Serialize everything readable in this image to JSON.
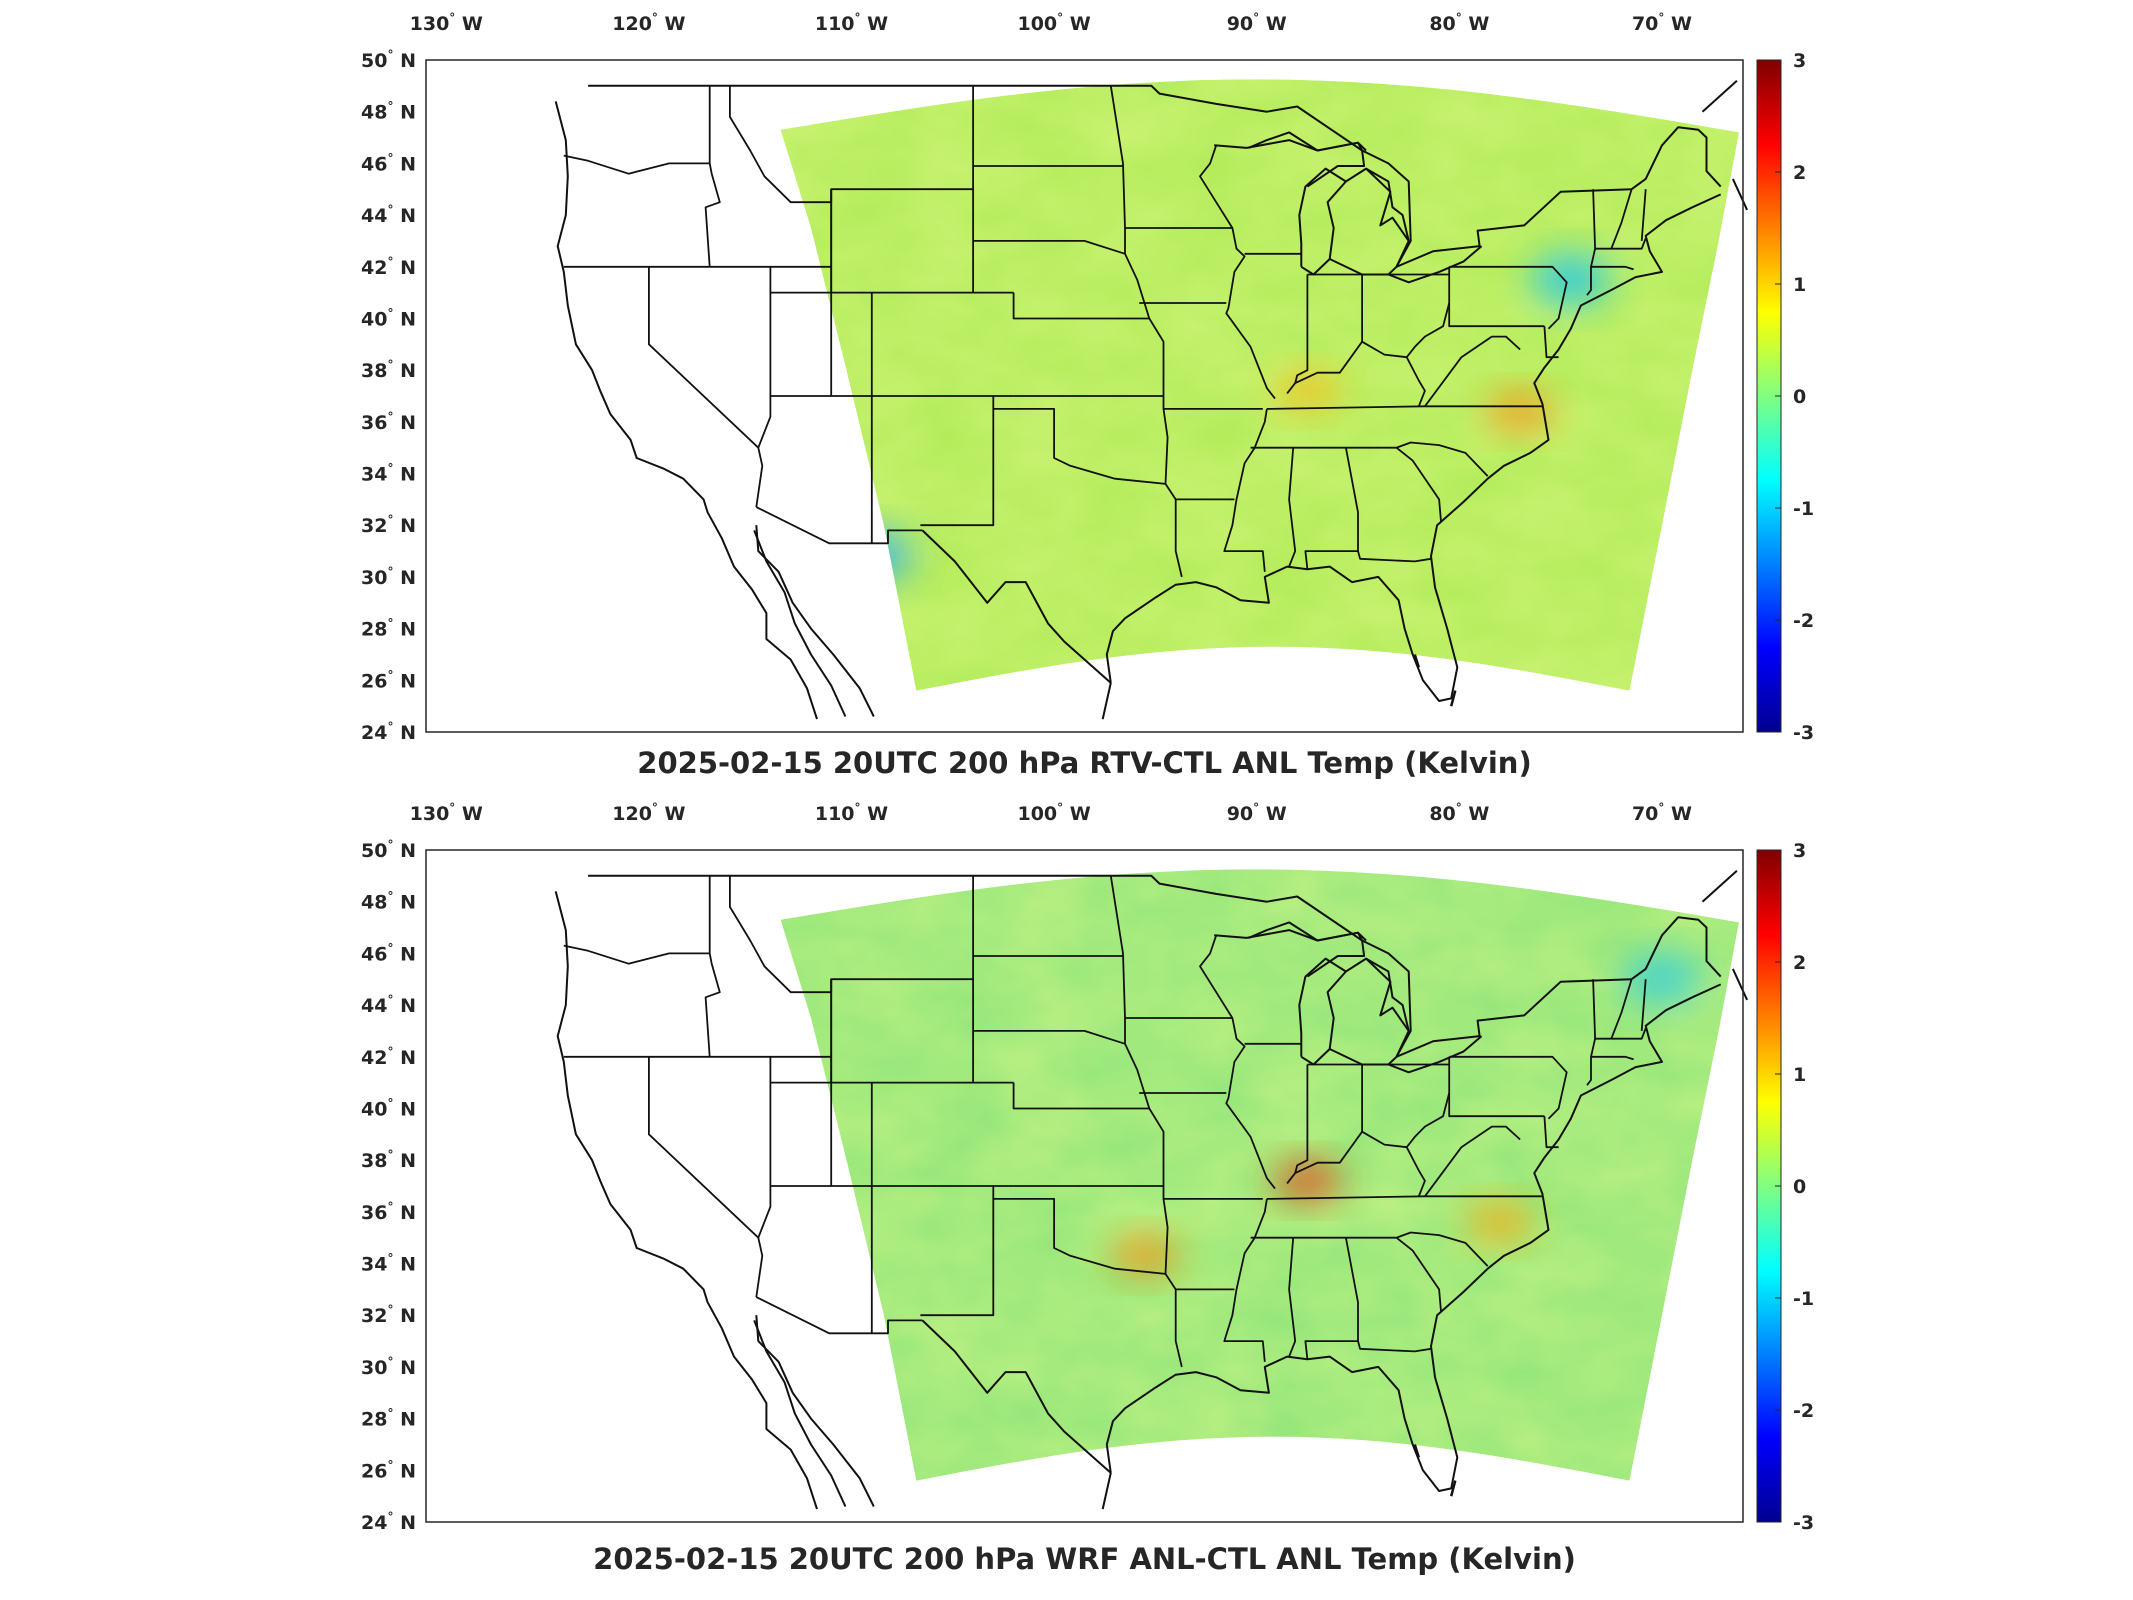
{
  "panels": [
    {
      "id": "top",
      "title": "2025-02-15 20UTC 200 hPa RTV-CTL ANL Temp (Kelvin)",
      "field_description": "mostly green-yellow, cyan patches NE and SW",
      "accent": "#d9f23a",
      "hot_spots": [
        [
          -87.5,
          37.2,
          "#f2c21a"
        ],
        [
          -77,
          36.4,
          "#f59a1a"
        ]
      ],
      "cold_spots": [
        [
          -74.5,
          41.5,
          "#22c8e6"
        ],
        [
          -109,
          30.8,
          "#2fb0ee"
        ]
      ]
    },
    {
      "id": "bottom",
      "title": "2025-02-15 20UTC 200 hPa WRF ANL-CTL ANL Temp (Kelvin)",
      "field_description": "green dominant with warm streak over Kentucky",
      "accent": "#9ee878",
      "hot_spots": [
        [
          -87.5,
          37.2,
          "#e0501a"
        ],
        [
          -95.5,
          34.3,
          "#f29a1a"
        ],
        [
          -78,
          35.6,
          "#f2b01a"
        ]
      ],
      "cold_spots": [
        [
          -70,
          45,
          "#3ad0d8"
        ]
      ]
    }
  ],
  "map": {
    "lon_ticks": [
      -130,
      -120,
      -110,
      -100,
      -90,
      -80,
      -70
    ],
    "lon_labels": [
      "130",
      "120",
      "110",
      "100",
      "90",
      "80",
      "70"
    ],
    "lon_hemisphere": "W",
    "lat_ticks": [
      50,
      48,
      46,
      44,
      42,
      40,
      38,
      36,
      34,
      32,
      30,
      28,
      26,
      24
    ],
    "lat_labels": [
      "50",
      "48",
      "46",
      "44",
      "42",
      "40",
      "38",
      "36",
      "34",
      "32",
      "30",
      "28",
      "26",
      "24"
    ],
    "lat_hemisphere": "N",
    "degree_symbol": "°",
    "lon_range": [
      -131,
      -66
    ],
    "lat_range": [
      24,
      50
    ]
  },
  "colorbar": {
    "ticks": [
      3,
      2,
      1,
      0,
      -1,
      -2,
      -3
    ],
    "tick_labels": [
      "3",
      "2",
      "1",
      "0",
      "-1",
      "-2",
      "-3"
    ],
    "colormap": "jet",
    "colors": [
      "#00008f",
      "#0000ff",
      "#0080ff",
      "#00ffff",
      "#80ff80",
      "#ffff00",
      "#ff8000",
      "#ff0000",
      "#800000"
    ]
  }
}
